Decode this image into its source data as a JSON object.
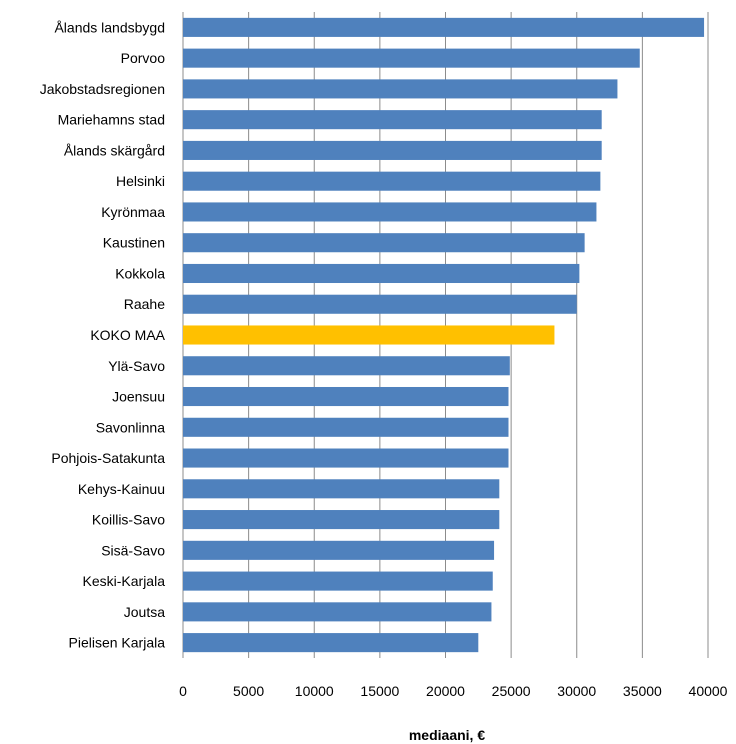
{
  "chart_data": {
    "type": "bar",
    "orientation": "horizontal",
    "title": "",
    "xlabel": "mediaani, €",
    "ylabel": "",
    "xlim": [
      0,
      40000
    ],
    "xticks": [
      0,
      5000,
      10000,
      15000,
      20000,
      25000,
      30000,
      35000,
      40000
    ],
    "grid": "vertical",
    "legend": "none",
    "categories": [
      "Ålands landsbygd",
      "Porvoo",
      "Jakobstadsregionen",
      "Mariehamns stad",
      "Ålands skärgård",
      "Helsinki",
      "Kyrönmaa",
      "Kaustinen",
      "Kokkola",
      "Raahe",
      "KOKO MAA",
      "Ylä-Savo",
      "Joensuu",
      "Savonlinna",
      "Pohjois-Satakunta",
      "Kehys-Kainuu",
      "Koillis-Savo",
      "Sisä-Savo",
      "Keski-Karjala",
      "Joutsa",
      "Pielisen Karjala"
    ],
    "values": [
      39700,
      34800,
      33100,
      31900,
      31900,
      31800,
      31500,
      30600,
      30200,
      30000,
      28300,
      24900,
      24800,
      24800,
      24800,
      24100,
      24100,
      23700,
      23600,
      23500,
      22500
    ],
    "colors": {
      "default": "#4f81bd",
      "highlight": "#ffc000"
    },
    "highlight_category": "KOKO MAA"
  }
}
